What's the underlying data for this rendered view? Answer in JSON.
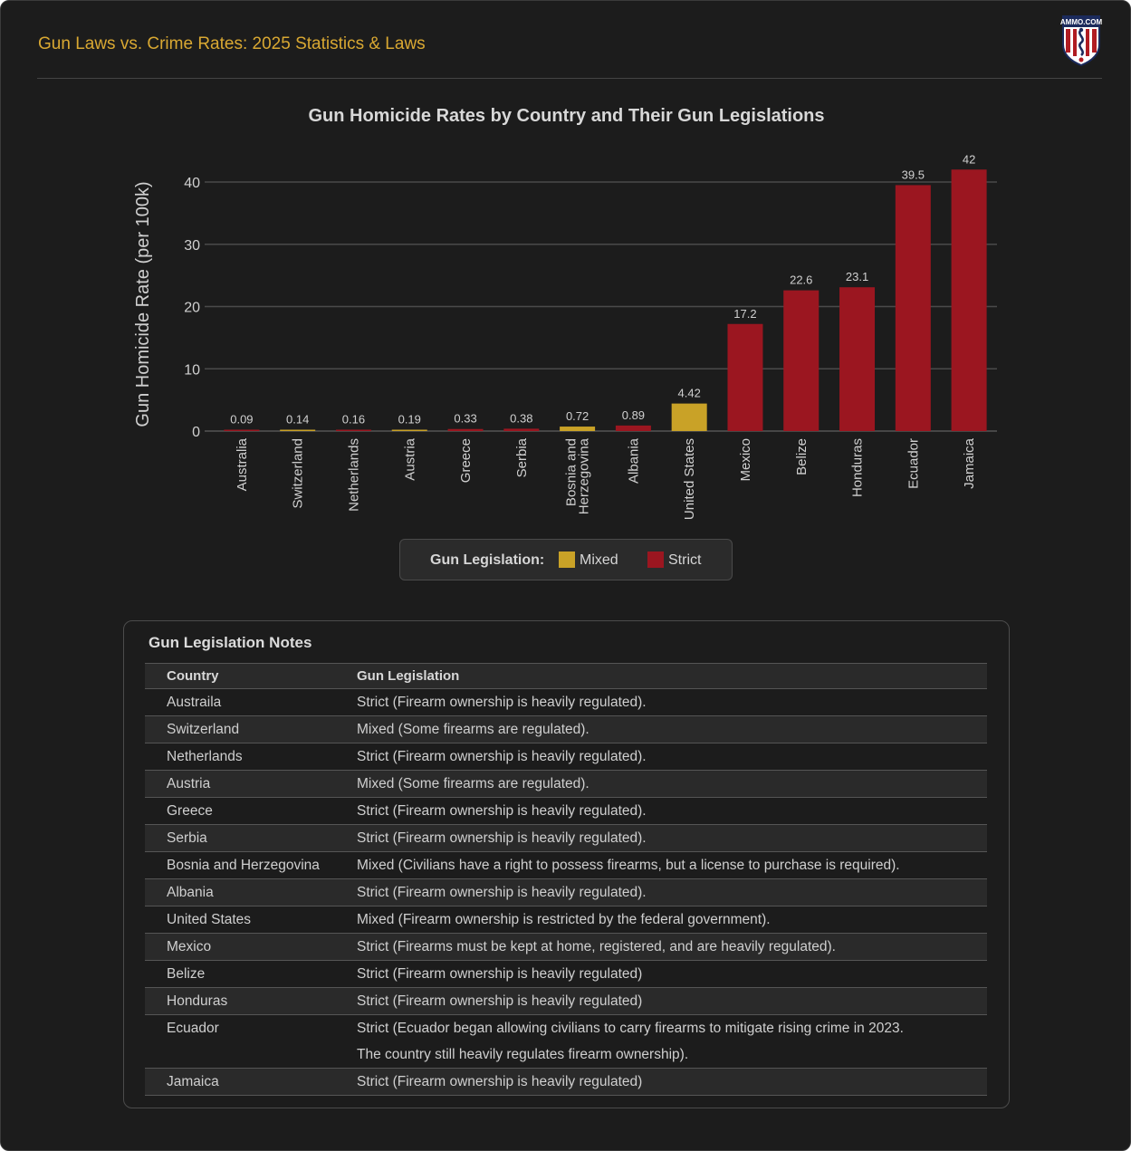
{
  "header": {
    "title": "Gun Laws vs. Crime Rates: 2025 Statistics & Laws",
    "logo_text": "AMMO.COM"
  },
  "colors": {
    "background": "#1c1c1c",
    "title_gold": "#d9a832",
    "mixed": "#c9a227",
    "strict": "#9b1620"
  },
  "chart_data": {
    "type": "bar",
    "title": "Gun Homicide Rates by Country and Their Gun Legislations",
    "xlabel": "",
    "ylabel": "Gun Homicide Rate (per 100k)",
    "ylim": [
      0,
      43
    ],
    "yticks": [
      0,
      10,
      20,
      30,
      40
    ],
    "grid": true,
    "categories": [
      "Australia",
      "Switzerland",
      "Netherlands",
      "Austria",
      "Greece",
      "Serbia",
      "Bosnia and Herzegovina",
      "Albania",
      "United States",
      "Mexico",
      "Belize",
      "Honduras",
      "Ecuador",
      "Jamaica"
    ],
    "category_lines": [
      [
        "Australia"
      ],
      [
        "Switzerland"
      ],
      [
        "Netherlands"
      ],
      [
        "Austria"
      ],
      [
        "Greece"
      ],
      [
        "Serbia"
      ],
      [
        "Bosnia and",
        "Herzegovina"
      ],
      [
        "Albania"
      ],
      [
        "United States"
      ],
      [
        "Mexico"
      ],
      [
        "Belize"
      ],
      [
        "Honduras"
      ],
      [
        "Ecuador"
      ],
      [
        "Jamaica"
      ]
    ],
    "values": [
      0.09,
      0.14,
      0.16,
      0.19,
      0.33,
      0.38,
      0.72,
      0.89,
      4.42,
      17.2,
      22.6,
      23.1,
      39.5,
      42
    ],
    "value_labels": [
      "0.09",
      "0.14",
      "0.16",
      "0.19",
      "0.33",
      "0.38",
      "0.72",
      "0.89",
      "4.42",
      "17.2",
      "22.6",
      "23.1",
      "39.5",
      "42"
    ],
    "legislation": [
      "Strict",
      "Mixed",
      "Strict",
      "Mixed",
      "Strict",
      "Strict",
      "Mixed",
      "Strict",
      "Mixed",
      "Strict",
      "Strict",
      "Strict",
      "Strict",
      "Strict"
    ],
    "legend": {
      "title": "Gun Legislation:",
      "position": "bottom-center",
      "entries": [
        {
          "name": "Mixed",
          "color": "#c9a227"
        },
        {
          "name": "Strict",
          "color": "#9b1620"
        }
      ]
    }
  },
  "notes": {
    "title": "Gun Legislation Notes",
    "columns": [
      "Country",
      "Gun Legislation"
    ],
    "rows": [
      {
        "country": "Austraila",
        "legislation": [
          "Strict (Firearm ownership is heavily regulated)."
        ]
      },
      {
        "country": "Switzerland",
        "legislation": [
          "Mixed (Some firearms are regulated)."
        ]
      },
      {
        "country": "Netherlands",
        "legislation": [
          "Strict (Firearm ownership is heavily regulated)."
        ]
      },
      {
        "country": "Austria",
        "legislation": [
          "Mixed (Some firearms are regulated)."
        ]
      },
      {
        "country": "Greece",
        "legislation": [
          "Strict (Firearm ownership is heavily regulated)."
        ]
      },
      {
        "country": "Serbia",
        "legislation": [
          "Strict (Firearm ownership is heavily regulated)."
        ]
      },
      {
        "country": "Bosnia and Herzegovina",
        "legislation": [
          "Mixed (Civilians have a right to possess firearms, but a license to purchase is required)."
        ]
      },
      {
        "country": "Albania",
        "legislation": [
          "Strict (Firearm ownership is heavily regulated)."
        ]
      },
      {
        "country": "United States",
        "legislation": [
          "Mixed (Firearm ownership is restricted by the federal government)."
        ]
      },
      {
        "country": "Mexico",
        "legislation": [
          "Strict (Firearms must be kept at home, registered, and are heavily regulated)."
        ]
      },
      {
        "country": "Belize",
        "legislation": [
          "Strict (Firearm ownership is heavily regulated)"
        ]
      },
      {
        "country": "Honduras",
        "legislation": [
          "Strict (Firearm ownership is heavily regulated)"
        ]
      },
      {
        "country": "Ecuador",
        "legislation": [
          "Strict (Ecuador began allowing civilians to carry firearms to mitigate rising crime in 2023.",
          "The country still heavily regulates firearm ownership)."
        ]
      },
      {
        "country": "Jamaica",
        "legislation": [
          "Strict (Firearm ownership is heavily regulated)"
        ]
      }
    ]
  }
}
